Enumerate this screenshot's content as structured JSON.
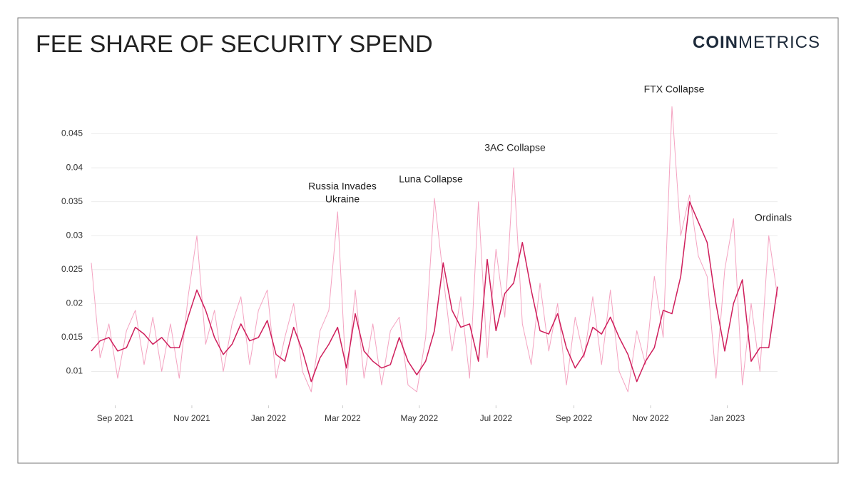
{
  "chart_data": {
    "type": "line",
    "title": "FEE SHARE OF SECURITY SPEND",
    "logo": {
      "bold": "COIN",
      "light": "METRICS"
    },
    "annotations": [
      {
        "lines": [
          "Russia Invades",
          "Ukraine"
        ]
      },
      {
        "lines": [
          "Luna Collapse"
        ]
      },
      {
        "lines": [
          "3AC Collapse"
        ]
      },
      {
        "lines": [
          "FTX Collapse"
        ]
      },
      {
        "lines": [
          "Ordinals"
        ]
      }
    ],
    "x": [
      "2021-08-13",
      "2021-08-20",
      "2021-08-27",
      "2021-09-03",
      "2021-09-10",
      "2021-09-17",
      "2021-09-24",
      "2021-10-01",
      "2021-10-08",
      "2021-10-15",
      "2021-10-22",
      "2021-10-29",
      "2021-11-05",
      "2021-11-12",
      "2021-11-19",
      "2021-11-26",
      "2021-12-03",
      "2021-12-10",
      "2021-12-17",
      "2021-12-24",
      "2021-12-31",
      "2022-01-07",
      "2022-01-14",
      "2022-01-21",
      "2022-01-28",
      "2022-02-04",
      "2022-02-11",
      "2022-02-18",
      "2022-02-25",
      "2022-03-04",
      "2022-03-11",
      "2022-03-18",
      "2022-03-25",
      "2022-04-01",
      "2022-04-08",
      "2022-04-15",
      "2022-04-22",
      "2022-04-29",
      "2022-05-06",
      "2022-05-13",
      "2022-05-20",
      "2022-05-27",
      "2022-06-03",
      "2022-06-10",
      "2022-06-17",
      "2022-06-24",
      "2022-07-01",
      "2022-07-08",
      "2022-07-15",
      "2022-07-22",
      "2022-07-29",
      "2022-08-05",
      "2022-08-12",
      "2022-08-19",
      "2022-08-26",
      "2022-09-02",
      "2022-09-09",
      "2022-09-16",
      "2022-09-23",
      "2022-09-30",
      "2022-10-07",
      "2022-10-14",
      "2022-10-21",
      "2022-10-28",
      "2022-11-04",
      "2022-11-11",
      "2022-11-18",
      "2022-11-25",
      "2022-12-02",
      "2022-12-09",
      "2022-12-16",
      "2022-12-23",
      "2022-12-30",
      "2023-01-06",
      "2023-01-13",
      "2023-01-20",
      "2023-01-27",
      "2023-02-03",
      "2023-02-10"
    ],
    "series": [
      {
        "color": "#f4a3c1",
        "width": 1,
        "values": [
          0.026,
          0.012,
          0.017,
          0.009,
          0.016,
          0.019,
          0.011,
          0.018,
          0.01,
          0.017,
          0.009,
          0.021,
          0.03,
          0.014,
          0.019,
          0.01,
          0.017,
          0.021,
          0.011,
          0.019,
          0.022,
          0.009,
          0.015,
          0.02,
          0.01,
          0.007,
          0.016,
          0.019,
          0.0335,
          0.008,
          0.022,
          0.009,
          0.017,
          0.008,
          0.016,
          0.018,
          0.008,
          0.007,
          0.015,
          0.0355,
          0.024,
          0.013,
          0.021,
          0.009,
          0.035,
          0.012,
          0.028,
          0.018,
          0.04,
          0.017,
          0.011,
          0.023,
          0.013,
          0.02,
          0.008,
          0.018,
          0.012,
          0.021,
          0.011,
          0.022,
          0.01,
          0.007,
          0.016,
          0.011,
          0.024,
          0.015,
          0.049,
          0.03,
          0.036,
          0.027,
          0.024,
          0.009,
          0.025,
          0.0325,
          0.008,
          0.02,
          0.01,
          0.03,
          0.021
        ]
      },
      {
        "color": "#cf1f5c",
        "width": 1.5,
        "values": [
          0.013,
          0.0145,
          0.015,
          0.013,
          0.0135,
          0.0165,
          0.0155,
          0.014,
          0.015,
          0.0135,
          0.0135,
          0.018,
          0.022,
          0.019,
          0.015,
          0.0125,
          0.014,
          0.017,
          0.0145,
          0.015,
          0.0175,
          0.0125,
          0.0115,
          0.0165,
          0.013,
          0.0085,
          0.012,
          0.014,
          0.0165,
          0.0105,
          0.0185,
          0.013,
          0.0115,
          0.0105,
          0.011,
          0.015,
          0.0115,
          0.0095,
          0.0115,
          0.016,
          0.026,
          0.019,
          0.0165,
          0.017,
          0.0115,
          0.0265,
          0.016,
          0.0215,
          0.023,
          0.029,
          0.022,
          0.016,
          0.0155,
          0.0185,
          0.0135,
          0.0105,
          0.0125,
          0.0165,
          0.0155,
          0.018,
          0.015,
          0.0125,
          0.0085,
          0.0115,
          0.0135,
          0.019,
          0.0185,
          0.024,
          0.035,
          0.032,
          0.029,
          0.02,
          0.013,
          0.02,
          0.0235,
          0.0115,
          0.0135,
          0.0135,
          0.0225
        ]
      }
    ],
    "xlim": [
      "2021-08-13",
      "2023-02-10"
    ],
    "xticks": [
      {
        "value": "2021-09-01",
        "label": "Sep 2021"
      },
      {
        "value": "2021-11-01",
        "label": "Nov 2021"
      },
      {
        "value": "2022-01-01",
        "label": "Jan 2022"
      },
      {
        "value": "2022-03-01",
        "label": "Mar 2022"
      },
      {
        "value": "2022-05-01",
        "label": "May 2022"
      },
      {
        "value": "2022-07-01",
        "label": "Jul 2022"
      },
      {
        "value": "2022-09-01",
        "label": "Sep 2022"
      },
      {
        "value": "2022-11-01",
        "label": "Nov 2022"
      },
      {
        "value": "2023-01-01",
        "label": "Jan 2023"
      }
    ],
    "ylim": [
      0.005,
      0.05
    ],
    "yticks": [
      0.01,
      0.015,
      0.02,
      0.025,
      0.03,
      0.035,
      0.04,
      0.045
    ],
    "grid": true
  }
}
